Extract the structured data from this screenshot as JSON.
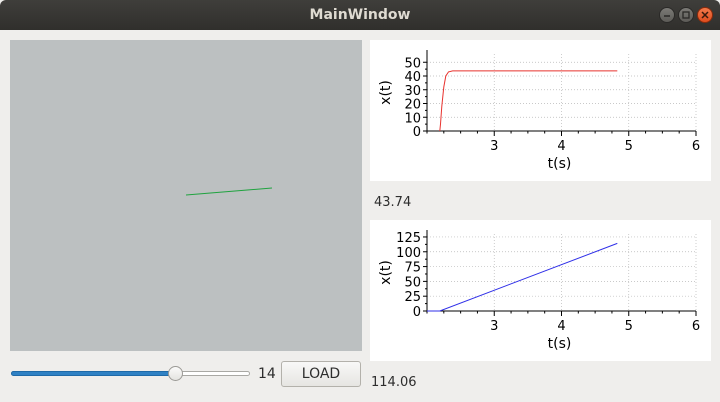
{
  "window": {
    "title": "MainWindow"
  },
  "controls": {
    "slider_value": 14,
    "slider_min": 0,
    "slider_max": 20,
    "slider_label": "14",
    "load_label": "LOAD"
  },
  "labels": {
    "top_value": "43.74",
    "bottom_value": "114.06"
  },
  "colors": {
    "top_series": "#e8332f",
    "bottom_series": "#2f2fe8",
    "segment": "#1fa33f",
    "canvas_bg": "#bcc0c1"
  },
  "chart_data": [
    {
      "type": "line",
      "ylabel": "x(t)",
      "xlabel": "t(s)",
      "xlim": [
        2.0,
        6.0
      ],
      "ylim": [
        0,
        56
      ],
      "xticks": [
        "3",
        "4",
        "5",
        "6"
      ],
      "yticks": [
        "0",
        "10",
        "20",
        "30",
        "40",
        "50"
      ],
      "ytick_values": [
        0,
        10,
        20,
        30,
        40,
        50
      ],
      "xtick_values": [
        3,
        4,
        5,
        6
      ],
      "grid": true,
      "series": [
        {
          "x": [
            2.19,
            2.2,
            2.22,
            2.25,
            2.28,
            2.32,
            2.38,
            2.5,
            3.0,
            4.0,
            4.83
          ],
          "values": [
            0,
            5,
            18,
            32,
            40,
            43,
            43.7,
            43.74,
            43.74,
            43.74,
            43.74
          ]
        }
      ]
    },
    {
      "type": "line",
      "ylabel": "x(t)",
      "xlabel": "t(s)",
      "xlim": [
        2.0,
        6.0
      ],
      "ylim": [
        0,
        130
      ],
      "xticks": [
        "3",
        "4",
        "5",
        "6"
      ],
      "yticks": [
        "0",
        "25",
        "50",
        "75",
        "100",
        "125"
      ],
      "ytick_values": [
        0,
        25,
        50,
        75,
        100,
        125
      ],
      "xtick_values": [
        3,
        4,
        5,
        6
      ],
      "grid": true,
      "series": [
        {
          "x": [
            2.0,
            2.19,
            4.83
          ],
          "values": [
            0,
            0,
            114.06
          ]
        }
      ]
    }
  ]
}
